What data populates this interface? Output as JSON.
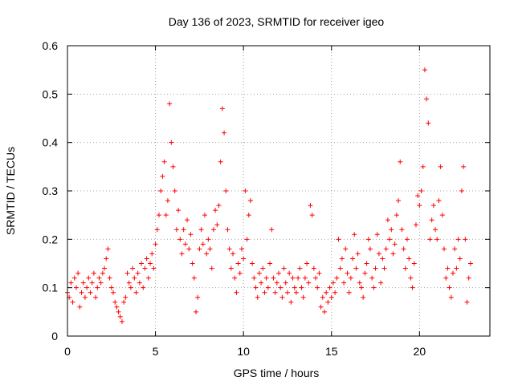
{
  "chart_data": {
    "type": "scatter",
    "title": "Day 136 of 2023, SRMTID for receiver igeo",
    "xlabel": "GPS time / hours",
    "ylabel": "SRMTID / TECUs",
    "xlim": [
      0,
      24
    ],
    "ylim": [
      0,
      0.6
    ],
    "grid": true,
    "marker": "+",
    "color": "#ff0000",
    "x_ticks": [
      0,
      5,
      10,
      15,
      20
    ],
    "x_tick_labels": [
      "0",
      "5",
      "10",
      "15",
      "20"
    ],
    "y_ticks": [
      0,
      0.1,
      0.2,
      0.3,
      0.4,
      0.5,
      0.6
    ],
    "y_tick_labels": [
      "0",
      "0.1",
      "0.2",
      "0.3",
      "0.4",
      "0.5",
      "0.6"
    ],
    "series": [
      {
        "name": "SRMTID",
        "points": [
          [
            0.0,
            0.09
          ],
          [
            0.1,
            0.08
          ],
          [
            0.2,
            0.11
          ],
          [
            0.3,
            0.07
          ],
          [
            0.4,
            0.12
          ],
          [
            0.5,
            0.1
          ],
          [
            0.6,
            0.13
          ],
          [
            0.7,
            0.06
          ],
          [
            0.8,
            0.09
          ],
          [
            0.9,
            0.11
          ],
          [
            1.0,
            0.08
          ],
          [
            1.1,
            0.1
          ],
          [
            1.2,
            0.12
          ],
          [
            1.3,
            0.09
          ],
          [
            1.4,
            0.11
          ],
          [
            1.5,
            0.13
          ],
          [
            1.6,
            0.08
          ],
          [
            1.7,
            0.1
          ],
          [
            1.8,
            0.12
          ],
          [
            1.9,
            0.11
          ],
          [
            2.0,
            0.13
          ],
          [
            2.1,
            0.14
          ],
          [
            2.2,
            0.16
          ],
          [
            2.3,
            0.18
          ],
          [
            2.4,
            0.12
          ],
          [
            2.5,
            0.1
          ],
          [
            2.6,
            0.09
          ],
          [
            2.7,
            0.07
          ],
          [
            2.8,
            0.06
          ],
          [
            2.9,
            0.05
          ],
          [
            3.0,
            0.04
          ],
          [
            3.1,
            0.03
          ],
          [
            3.2,
            0.07
          ],
          [
            3.3,
            0.08
          ],
          [
            3.4,
            0.13
          ],
          [
            3.5,
            0.11
          ],
          [
            3.6,
            0.1
          ],
          [
            3.7,
            0.14
          ],
          [
            3.8,
            0.12
          ],
          [
            3.9,
            0.09
          ],
          [
            4.0,
            0.13
          ],
          [
            4.1,
            0.11
          ],
          [
            4.2,
            0.15
          ],
          [
            4.3,
            0.1
          ],
          [
            4.4,
            0.14
          ],
          [
            4.5,
            0.16
          ],
          [
            4.6,
            0.12
          ],
          [
            4.7,
            0.15
          ],
          [
            4.8,
            0.17
          ],
          [
            4.9,
            0.14
          ],
          [
            5.0,
            0.19
          ],
          [
            5.1,
            0.22
          ],
          [
            5.2,
            0.25
          ],
          [
            5.3,
            0.3
          ],
          [
            5.4,
            0.33
          ],
          [
            5.5,
            0.36
          ],
          [
            5.6,
            0.25
          ],
          [
            5.7,
            0.28
          ],
          [
            5.8,
            0.48
          ],
          [
            5.9,
            0.4
          ],
          [
            6.0,
            0.35
          ],
          [
            6.1,
            0.3
          ],
          [
            6.2,
            0.22
          ],
          [
            6.3,
            0.26
          ],
          [
            6.4,
            0.2
          ],
          [
            6.5,
            0.17
          ],
          [
            6.6,
            0.22
          ],
          [
            6.7,
            0.19
          ],
          [
            6.8,
            0.24
          ],
          [
            6.9,
            0.18
          ],
          [
            7.0,
            0.21
          ],
          [
            7.1,
            0.15
          ],
          [
            7.2,
            0.12
          ],
          [
            7.3,
            0.05
          ],
          [
            7.4,
            0.08
          ],
          [
            7.5,
            0.18
          ],
          [
            7.6,
            0.22
          ],
          [
            7.7,
            0.19
          ],
          [
            7.8,
            0.25
          ],
          [
            7.9,
            0.17
          ],
          [
            8.0,
            0.2
          ],
          [
            8.1,
            0.18
          ],
          [
            8.2,
            0.14
          ],
          [
            8.3,
            0.22
          ],
          [
            8.4,
            0.26
          ],
          [
            8.5,
            0.23
          ],
          [
            8.6,
            0.27
          ],
          [
            8.7,
            0.36
          ],
          [
            8.8,
            0.47
          ],
          [
            8.9,
            0.42
          ],
          [
            9.0,
            0.3
          ],
          [
            9.1,
            0.22
          ],
          [
            9.2,
            0.18
          ],
          [
            9.3,
            0.14
          ],
          [
            9.4,
            0.17
          ],
          [
            9.5,
            0.12
          ],
          [
            9.6,
            0.09
          ],
          [
            9.7,
            0.15
          ],
          [
            9.8,
            0.13
          ],
          [
            9.9,
            0.18
          ],
          [
            10.0,
            0.16
          ],
          [
            10.1,
            0.3
          ],
          [
            10.2,
            0.2
          ],
          [
            10.3,
            0.25
          ],
          [
            10.4,
            0.28
          ],
          [
            10.5,
            0.15
          ],
          [
            10.6,
            0.12
          ],
          [
            10.7,
            0.1
          ],
          [
            10.8,
            0.08
          ],
          [
            10.9,
            0.13
          ],
          [
            11.0,
            0.11
          ],
          [
            11.1,
            0.14
          ],
          [
            11.2,
            0.09
          ],
          [
            11.3,
            0.12
          ],
          [
            11.4,
            0.1
          ],
          [
            11.5,
            0.15
          ],
          [
            11.6,
            0.22
          ],
          [
            11.7,
            0.12
          ],
          [
            11.8,
            0.09
          ],
          [
            11.9,
            0.11
          ],
          [
            12.0,
            0.13
          ],
          [
            12.1,
            0.1
          ],
          [
            12.2,
            0.08
          ],
          [
            12.3,
            0.14
          ],
          [
            12.4,
            0.11
          ],
          [
            12.5,
            0.09
          ],
          [
            12.6,
            0.13
          ],
          [
            12.7,
            0.07
          ],
          [
            12.8,
            0.12
          ],
          [
            12.9,
            0.1
          ],
          [
            13.0,
            0.09
          ],
          [
            13.1,
            0.12
          ],
          [
            13.2,
            0.14
          ],
          [
            13.3,
            0.1
          ],
          [
            13.4,
            0.08
          ],
          [
            13.5,
            0.12
          ],
          [
            13.6,
            0.15
          ],
          [
            13.7,
            0.11
          ],
          [
            13.8,
            0.27
          ],
          [
            13.9,
            0.25
          ],
          [
            14.0,
            0.14
          ],
          [
            14.1,
            0.12
          ],
          [
            14.2,
            0.1
          ],
          [
            14.3,
            0.13
          ],
          [
            14.4,
            0.06
          ],
          [
            14.5,
            0.08
          ],
          [
            14.6,
            0.05
          ],
          [
            14.7,
            0.09
          ],
          [
            14.8,
            0.07
          ],
          [
            14.9,
            0.1
          ],
          [
            15.0,
            0.08
          ],
          [
            15.1,
            0.11
          ],
          [
            15.2,
            0.09
          ],
          [
            15.3,
            0.12
          ],
          [
            15.4,
            0.2
          ],
          [
            15.5,
            0.14
          ],
          [
            15.6,
            0.16
          ],
          [
            15.7,
            0.11
          ],
          [
            15.8,
            0.18
          ],
          [
            15.9,
            0.13
          ],
          [
            16.0,
            0.09
          ],
          [
            16.1,
            0.12
          ],
          [
            16.2,
            0.16
          ],
          [
            16.3,
            0.21
          ],
          [
            16.4,
            0.14
          ],
          [
            16.5,
            0.17
          ],
          [
            16.6,
            0.11
          ],
          [
            16.7,
            0.1
          ],
          [
            16.8,
            0.08
          ],
          [
            16.9,
            0.13
          ],
          [
            17.0,
            0.15
          ],
          [
            17.1,
            0.2
          ],
          [
            17.2,
            0.18
          ],
          [
            17.3,
            0.12
          ],
          [
            17.4,
            0.1
          ],
          [
            17.5,
            0.14
          ],
          [
            17.6,
            0.21
          ],
          [
            17.7,
            0.17
          ],
          [
            17.8,
            0.11
          ],
          [
            17.9,
            0.16
          ],
          [
            18.0,
            0.14
          ],
          [
            18.1,
            0.18
          ],
          [
            18.2,
            0.24
          ],
          [
            18.3,
            0.2
          ],
          [
            18.4,
            0.22
          ],
          [
            18.5,
            0.17
          ],
          [
            18.6,
            0.19
          ],
          [
            18.7,
            0.25
          ],
          [
            18.8,
            0.28
          ],
          [
            18.9,
            0.36
          ],
          [
            19.0,
            0.22
          ],
          [
            19.1,
            0.18
          ],
          [
            19.2,
            0.14
          ],
          [
            19.3,
            0.2
          ],
          [
            19.4,
            0.16
          ],
          [
            19.5,
            0.12
          ],
          [
            19.6,
            0.1
          ],
          [
            19.7,
            0.15
          ],
          [
            19.8,
            0.23
          ],
          [
            19.9,
            0.29
          ],
          [
            20.0,
            0.27
          ],
          [
            20.1,
            0.3
          ],
          [
            20.2,
            0.35
          ],
          [
            20.3,
            0.55
          ],
          [
            20.4,
            0.49
          ],
          [
            20.5,
            0.44
          ],
          [
            20.6,
            0.2
          ],
          [
            20.7,
            0.24
          ],
          [
            20.8,
            0.27
          ],
          [
            20.9,
            0.22
          ],
          [
            21.0,
            0.2
          ],
          [
            21.1,
            0.28
          ],
          [
            21.2,
            0.35
          ],
          [
            21.3,
            0.25
          ],
          [
            21.4,
            0.18
          ],
          [
            21.5,
            0.12
          ],
          [
            21.6,
            0.14
          ],
          [
            21.7,
            0.1
          ],
          [
            21.8,
            0.08
          ],
          [
            21.9,
            0.13
          ],
          [
            22.0,
            0.18
          ],
          [
            22.1,
            0.14
          ],
          [
            22.2,
            0.2
          ],
          [
            22.3,
            0.16
          ],
          [
            22.4,
            0.3
          ],
          [
            22.5,
            0.35
          ],
          [
            22.6,
            0.2
          ],
          [
            22.7,
            0.07
          ],
          [
            22.8,
            0.12
          ],
          [
            22.9,
            0.15
          ]
        ]
      }
    ]
  }
}
